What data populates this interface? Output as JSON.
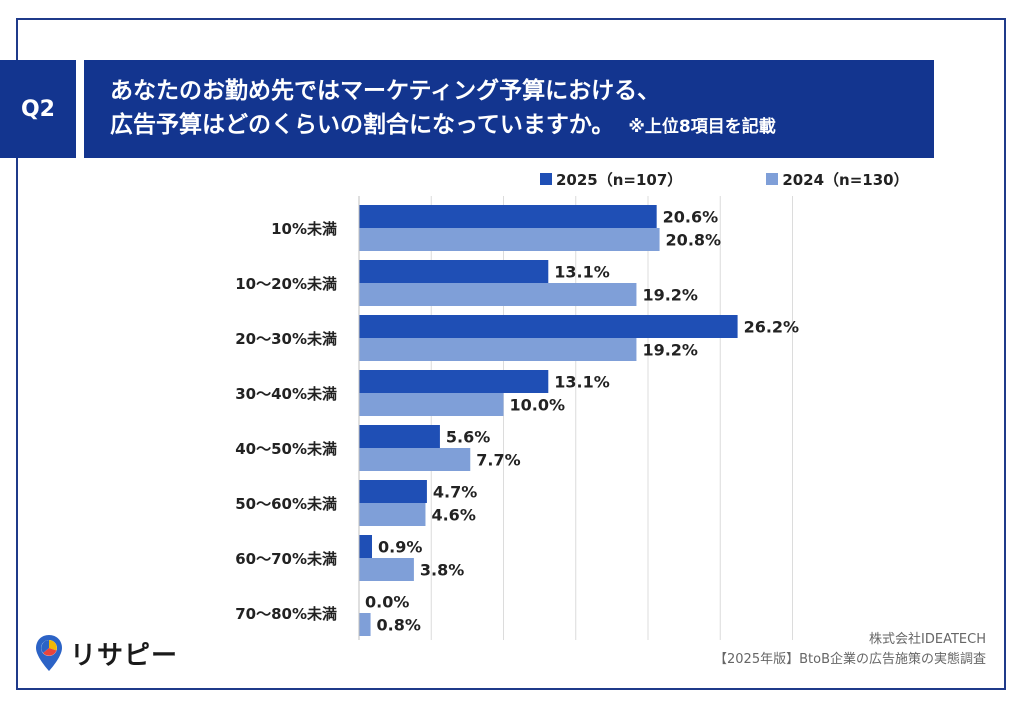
{
  "header": {
    "badge": "Q2",
    "question_line1": "あなたのお勤め先ではマーケティング予算における、",
    "question_line2": "広告予算はどのくらいの割合になっていますか。",
    "note": "※上位8項目を記載"
  },
  "legend": {
    "items": [
      {
        "label": "2025（n=107）",
        "color": "#1f4fb5"
      },
      {
        "label": "2024（n=130）",
        "color": "#7f9fd8"
      }
    ]
  },
  "chart_data": {
    "type": "bar",
    "orientation": "horizontal",
    "categories": [
      "10%未満",
      "10〜20%未満",
      "20〜30%未満",
      "30〜40%未満",
      "40〜50%未満",
      "50〜60%未満",
      "60〜70%未満",
      "70〜80%未満"
    ],
    "series": [
      {
        "name": "2025（n=107）",
        "values": [
          20.6,
          13.1,
          26.2,
          13.1,
          5.6,
          4.7,
          0.9,
          0.0
        ],
        "labels": [
          "20.6%",
          "13.1%",
          "26.2%",
          "13.1%",
          "5.6%",
          "4.7%",
          "0.9%",
          "0.0%"
        ],
        "color": "#1f4fb5"
      },
      {
        "name": "2024（n=130）",
        "values": [
          20.8,
          19.2,
          19.2,
          10.0,
          7.7,
          4.6,
          3.8,
          0.8
        ],
        "labels": [
          "20.8%",
          "19.2%",
          "19.2%",
          "10.0%",
          "7.7%",
          "4.6%",
          "3.8%",
          "0.8%"
        ],
        "color": "#7f9fd8"
      }
    ],
    "xlim": [
      0,
      30
    ],
    "grid": true,
    "legend": "top-right"
  },
  "footer": {
    "logo_text": "リサピー",
    "source_line1": "株式会社IDEATECH",
    "source_line2": "【2025年版】BtoB企業の広告施策の実態調査"
  }
}
